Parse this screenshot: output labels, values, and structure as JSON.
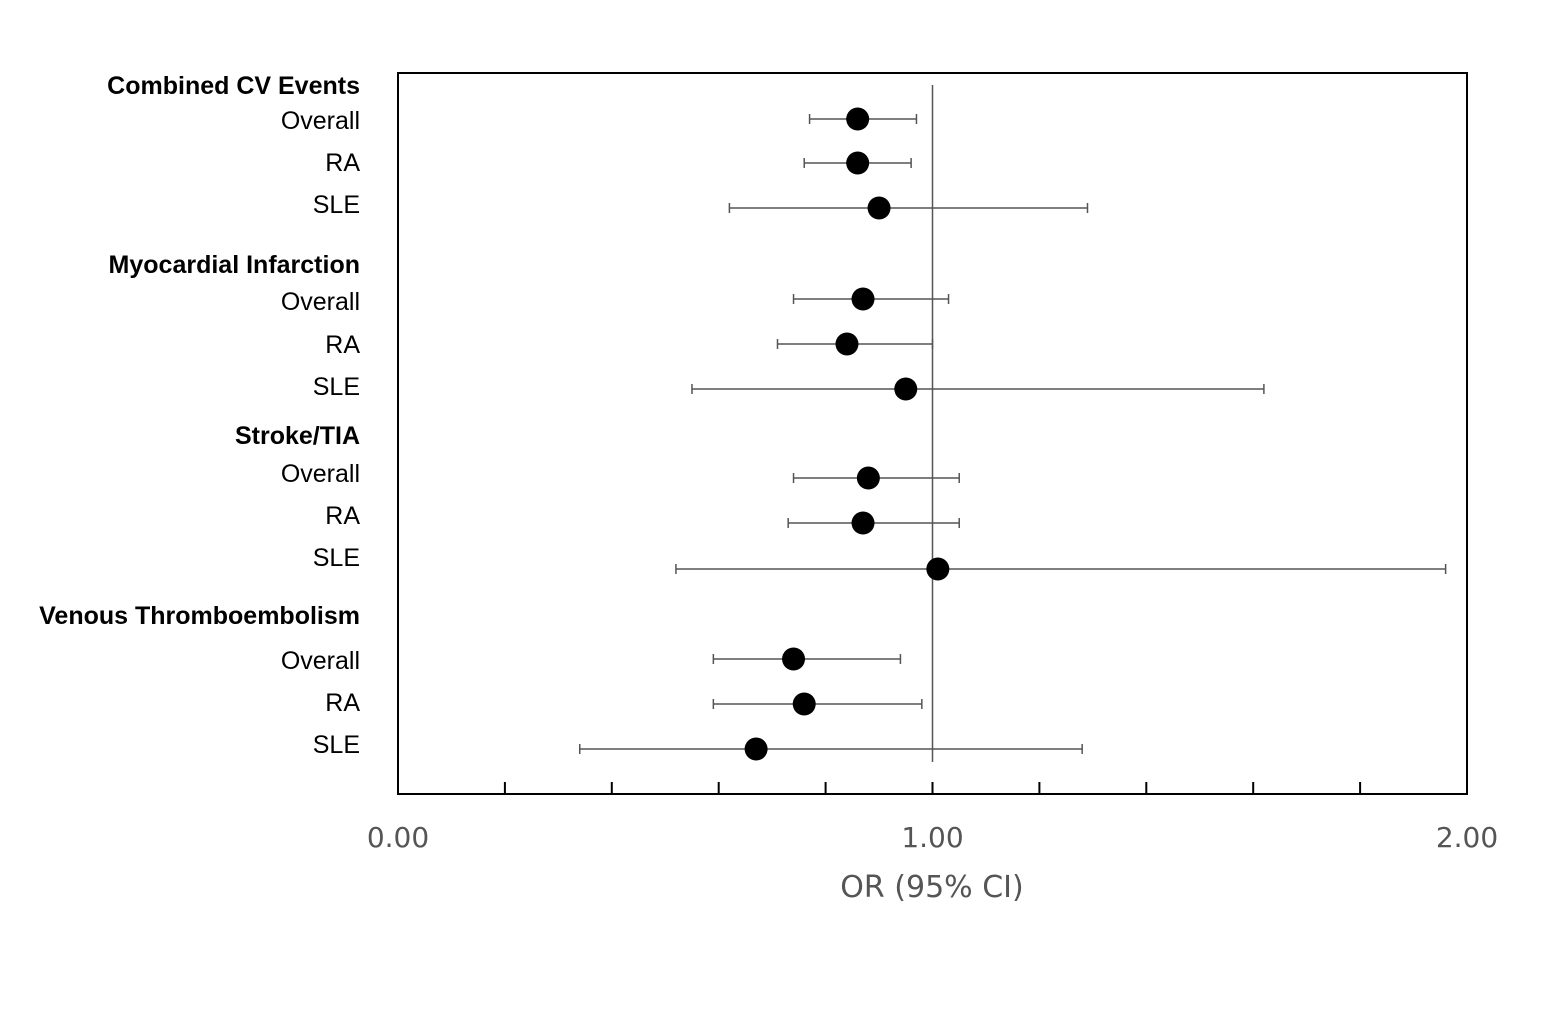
{
  "chart_data": {
    "type": "forest",
    "xlabel": "OR (95% CI)",
    "xlim": [
      0,
      2
    ],
    "xticks": [
      "0.00",
      "1.00",
      "2.00"
    ],
    "minor_tick_step": 0.2,
    "reference_line": 1.0,
    "grid": false,
    "groups": [
      {
        "label": "Combined CV Events",
        "rows": [
          {
            "label": "Overall",
            "or": 0.86,
            "lo": 0.77,
            "hi": 0.97
          },
          {
            "label": "RA",
            "or": 0.86,
            "lo": 0.76,
            "hi": 0.96
          },
          {
            "label": "SLE",
            "or": 0.9,
            "lo": 0.62,
            "hi": 1.29
          }
        ]
      },
      {
        "label": "Myocardial Infarction",
        "rows": [
          {
            "label": "Overall",
            "or": 0.87,
            "lo": 0.74,
            "hi": 1.03
          },
          {
            "label": "RA",
            "or": 0.84,
            "lo": 0.71,
            "hi": 1.0
          },
          {
            "label": "SLE",
            "or": 0.95,
            "lo": 0.55,
            "hi": 1.62
          }
        ]
      },
      {
        "label": "Stroke/TIA",
        "rows": [
          {
            "label": "Overall",
            "or": 0.88,
            "lo": 0.74,
            "hi": 1.05
          },
          {
            "label": "RA",
            "or": 0.87,
            "lo": 0.73,
            "hi": 1.05
          },
          {
            "label": "SLE",
            "or": 1.01,
            "lo": 0.52,
            "hi": 1.96
          }
        ]
      },
      {
        "label": "Venous Thromboembolism",
        "rows": [
          {
            "label": "Overall",
            "or": 0.74,
            "lo": 0.59,
            "hi": 0.94
          },
          {
            "label": "RA",
            "or": 0.76,
            "lo": 0.59,
            "hi": 0.98
          },
          {
            "label": "SLE",
            "or": 0.67,
            "lo": 0.34,
            "hi": 1.28
          }
        ]
      }
    ]
  }
}
